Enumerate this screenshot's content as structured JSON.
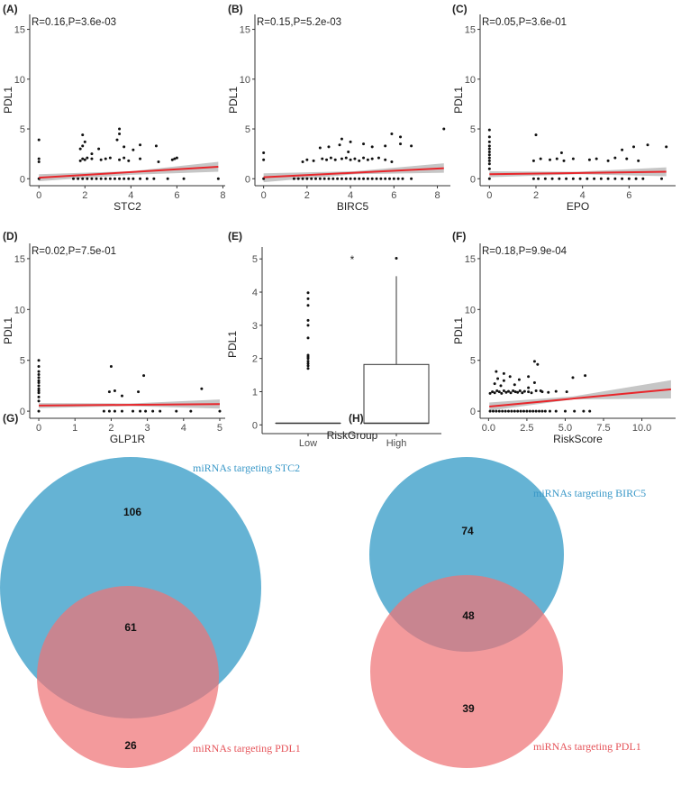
{
  "panel_labels": [
    "(A)",
    "(B)",
    "(C)",
    "(D)",
    "(E)",
    "(F)",
    "(G)",
    "(H)"
  ],
  "colors": {
    "points": "#111111",
    "fit_line": "#e8262b",
    "ci_band": "#b3b3b3",
    "venn_blue": "#4aa6cd",
    "venn_red": "#ef7376",
    "venn_blue_text": "#3a98c8",
    "venn_red_text": "#e5545a"
  },
  "chart_data": [
    {
      "panel": "(A)",
      "type": "scatter",
      "xlabel": "STC2",
      "ylabel": "PDL1",
      "annotation": "R=0.16,P=3.6e-03",
      "xlim": [
        -0.4,
        8.1
      ],
      "ylim": [
        -0.7,
        16.5
      ],
      "xticks": [
        0,
        2,
        4,
        6,
        8
      ],
      "yticks": [
        0,
        5,
        10,
        15
      ],
      "fit": {
        "x": [
          0,
          7.8
        ],
        "y": [
          0.1,
          1.2
        ],
        "ci": [
          [
            0,
            -0.25,
            0.45
          ],
          [
            4,
            0.4,
            0.75
          ],
          [
            7.8,
            0.7,
            1.7
          ]
        ]
      },
      "points": [
        [
          0,
          0
        ],
        [
          0,
          1.7
        ],
        [
          0,
          2.0
        ],
        [
          0,
          3.9
        ],
        [
          1.5,
          0
        ],
        [
          1.7,
          0
        ],
        [
          1.9,
          0
        ],
        [
          2.1,
          0
        ],
        [
          2.3,
          0
        ],
        [
          2.5,
          0
        ],
        [
          2.7,
          0
        ],
        [
          2.9,
          0
        ],
        [
          3.1,
          0
        ],
        [
          3.3,
          0
        ],
        [
          3.5,
          0
        ],
        [
          3.7,
          0
        ],
        [
          3.9,
          0
        ],
        [
          4.1,
          0
        ],
        [
          4.4,
          0
        ],
        [
          4.7,
          0
        ],
        [
          5.0,
          0
        ],
        [
          5.6,
          0
        ],
        [
          6.3,
          0
        ],
        [
          7.8,
          0
        ],
        [
          1.8,
          1.8
        ],
        [
          1.9,
          2.0
        ],
        [
          2.0,
          1.9
        ],
        [
          2.1,
          2.1
        ],
        [
          2.3,
          2.0
        ],
        [
          2.7,
          1.9
        ],
        [
          2.9,
          2.0
        ],
        [
          3.1,
          2.1
        ],
        [
          3.5,
          1.9
        ],
        [
          3.7,
          2.1
        ],
        [
          3.9,
          1.8
        ],
        [
          4.4,
          2.0
        ],
        [
          5.2,
          1.7
        ],
        [
          5.8,
          1.9
        ],
        [
          1.8,
          3.0
        ],
        [
          1.9,
          3.3
        ],
        [
          2.0,
          3.7
        ],
        [
          1.9,
          4.4
        ],
        [
          2.3,
          2.5
        ],
        [
          2.6,
          3.0
        ],
        [
          3.4,
          3.9
        ],
        [
          3.5,
          4.5
        ],
        [
          3.5,
          5.0
        ],
        [
          3.7,
          3.2
        ],
        [
          4.1,
          2.9
        ],
        [
          4.4,
          3.4
        ],
        [
          5.1,
          3.3
        ],
        [
          5.9,
          2.0
        ],
        [
          6.0,
          2.1
        ]
      ]
    },
    {
      "panel": "(B)",
      "type": "scatter",
      "xlabel": "BIRC5",
      "ylabel": "PDL1",
      "annotation": "R=0.15,P=5.2e-03",
      "xlim": [
        -0.4,
        8.6
      ],
      "ylim": [
        -0.7,
        16.5
      ],
      "xticks": [
        0,
        2,
        4,
        6,
        8
      ],
      "yticks": [
        0,
        5,
        10,
        15
      ],
      "fit": {
        "x": [
          0,
          8.3
        ],
        "y": [
          0.15,
          1.05
        ],
        "ci": [
          [
            0,
            -0.35,
            0.55
          ],
          [
            4.2,
            0.45,
            0.75
          ],
          [
            8.3,
            0.6,
            1.55
          ]
        ]
      },
      "points": [
        [
          0,
          0
        ],
        [
          0,
          1.9
        ],
        [
          0,
          2.6
        ],
        [
          1.4,
          0
        ],
        [
          1.6,
          0
        ],
        [
          1.8,
          0
        ],
        [
          2.0,
          0
        ],
        [
          2.2,
          0
        ],
        [
          2.4,
          0
        ],
        [
          2.6,
          0
        ],
        [
          2.8,
          0
        ],
        [
          3.0,
          0
        ],
        [
          3.2,
          0
        ],
        [
          3.4,
          0
        ],
        [
          3.6,
          0
        ],
        [
          3.8,
          0
        ],
        [
          4.0,
          0
        ],
        [
          4.2,
          0
        ],
        [
          4.4,
          0
        ],
        [
          4.6,
          0
        ],
        [
          4.8,
          0
        ],
        [
          5.0,
          0
        ],
        [
          5.2,
          0
        ],
        [
          5.4,
          0
        ],
        [
          5.6,
          0
        ],
        [
          5.8,
          0
        ],
        [
          6.0,
          0
        ],
        [
          6.2,
          0
        ],
        [
          6.4,
          0
        ],
        [
          6.8,
          0
        ],
        [
          1.8,
          1.7
        ],
        [
          2.0,
          1.9
        ],
        [
          2.3,
          1.8
        ],
        [
          2.7,
          2.0
        ],
        [
          2.9,
          1.9
        ],
        [
          3.1,
          2.1
        ],
        [
          3.3,
          1.9
        ],
        [
          3.6,
          2.0
        ],
        [
          3.8,
          2.1
        ],
        [
          4.0,
          1.9
        ],
        [
          4.2,
          2.0
        ],
        [
          4.4,
          1.8
        ],
        [
          4.6,
          2.1
        ],
        [
          4.8,
          1.9
        ],
        [
          5.0,
          2.0
        ],
        [
          5.3,
          2.1
        ],
        [
          5.6,
          1.9
        ],
        [
          5.9,
          1.7
        ],
        [
          2.6,
          3.1
        ],
        [
          3.0,
          3.2
        ],
        [
          3.5,
          3.4
        ],
        [
          3.9,
          2.7
        ],
        [
          3.6,
          4.0
        ],
        [
          4.0,
          3.7
        ],
        [
          4.6,
          3.5
        ],
        [
          5.0,
          3.2
        ],
        [
          5.6,
          3.3
        ],
        [
          5.9,
          4.5
        ],
        [
          6.3,
          3.5
        ],
        [
          6.8,
          3.3
        ],
        [
          6.3,
          4.2
        ],
        [
          8.3,
          5.0
        ]
      ]
    },
    {
      "panel": "(C)",
      "type": "scatter",
      "xlabel": "EPO",
      "ylabel": "PDL1",
      "annotation": "R=0.05,P=3.6e-01",
      "xlim": [
        -0.4,
        8.0
      ],
      "ylim": [
        -0.7,
        16.5
      ],
      "xticks": [
        0,
        2,
        4,
        6
      ],
      "yticks": [
        0,
        5,
        10,
        15
      ],
      "fit": {
        "x": [
          0,
          7.6
        ],
        "y": [
          0.45,
          0.7
        ],
        "ci": [
          [
            0,
            0.15,
            0.75
          ],
          [
            3.8,
            0.45,
            0.7
          ],
          [
            7.6,
            0.25,
            1.15
          ]
        ]
      },
      "points": [
        [
          0,
          0
        ],
        [
          0,
          1.0
        ],
        [
          0,
          1.5
        ],
        [
          0,
          1.8
        ],
        [
          0,
          2.1
        ],
        [
          0,
          2.4
        ],
        [
          0,
          2.7
        ],
        [
          0,
          3.0
        ],
        [
          0,
          3.3
        ],
        [
          0,
          3.7
        ],
        [
          0,
          4.2
        ],
        [
          0,
          4.9
        ],
        [
          1.9,
          0
        ],
        [
          2.1,
          0
        ],
        [
          2.4,
          0
        ],
        [
          2.7,
          0
        ],
        [
          3.0,
          0
        ],
        [
          3.3,
          0
        ],
        [
          3.6,
          0
        ],
        [
          3.9,
          0
        ],
        [
          4.2,
          0
        ],
        [
          4.5,
          0
        ],
        [
          4.8,
          0
        ],
        [
          5.1,
          0
        ],
        [
          5.4,
          0
        ],
        [
          5.7,
          0
        ],
        [
          6.0,
          0
        ],
        [
          6.3,
          0
        ],
        [
          6.6,
          0
        ],
        [
          7.4,
          0
        ],
        [
          1.9,
          1.8
        ],
        [
          2.2,
          2.0
        ],
        [
          2.6,
          1.9
        ],
        [
          2.9,
          2.0
        ],
        [
          3.2,
          1.8
        ],
        [
          3.6,
          2.0
        ],
        [
          4.3,
          1.9
        ],
        [
          4.6,
          2.0
        ],
        [
          5.1,
          1.8
        ],
        [
          5.4,
          2.1
        ],
        [
          5.9,
          2.0
        ],
        [
          6.4,
          1.8
        ],
        [
          2.0,
          4.4
        ],
        [
          3.1,
          2.6
        ],
        [
          5.7,
          2.9
        ],
        [
          6.2,
          3.2
        ],
        [
          6.8,
          3.4
        ],
        [
          7.6,
          3.2
        ]
      ]
    },
    {
      "panel": "(D)",
      "type": "scatter",
      "xlabel": "GLP1R",
      "ylabel": "PDL1",
      "annotation": "R=0.02,P=7.5e-01",
      "xlim": [
        -0.25,
        5.15
      ],
      "ylim": [
        -0.7,
        16.5
      ],
      "xticks": [
        0,
        1,
        2,
        3,
        4,
        5
      ],
      "yticks": [
        0,
        5,
        10,
        15
      ],
      "fit": {
        "x": [
          0,
          5.0
        ],
        "y": [
          0.55,
          0.7
        ],
        "ci": [
          [
            0,
            0.3,
            0.8
          ],
          [
            2.5,
            0.5,
            0.75
          ],
          [
            5.0,
            0.25,
            1.15
          ]
        ]
      },
      "points": [
        [
          0,
          0
        ],
        [
          0,
          1.0
        ],
        [
          0,
          1.4
        ],
        [
          0,
          1.8
        ],
        [
          0,
          2.0
        ],
        [
          0,
          2.2
        ],
        [
          0,
          2.5
        ],
        [
          0,
          2.8
        ],
        [
          0,
          3.0
        ],
        [
          0,
          3.3
        ],
        [
          0,
          3.6
        ],
        [
          0,
          3.9
        ],
        [
          0,
          4.4
        ],
        [
          0,
          5.0
        ],
        [
          1.8,
          0
        ],
        [
          1.95,
          0
        ],
        [
          2.1,
          0
        ],
        [
          2.3,
          0
        ],
        [
          2.6,
          0
        ],
        [
          2.8,
          0
        ],
        [
          2.95,
          0
        ],
        [
          3.15,
          0
        ],
        [
          3.35,
          0
        ],
        [
          3.8,
          0
        ],
        [
          4.2,
          0
        ],
        [
          5.0,
          0
        ],
        [
          1.95,
          1.9
        ],
        [
          2.1,
          2.0
        ],
        [
          2.3,
          1.5
        ],
        [
          2.75,
          1.9
        ],
        [
          2.9,
          3.5
        ],
        [
          2.0,
          4.4
        ],
        [
          4.5,
          2.2
        ]
      ]
    },
    {
      "panel": "(E)",
      "type": "box",
      "xlabel": "RiskGroup",
      "ylabel": "PDL1",
      "categories": [
        "Low",
        "High"
      ],
      "ylim": [
        -0.1,
        5.25
      ],
      "yticks": [
        0,
        1,
        2,
        3,
        4,
        5
      ],
      "significance": "*",
      "boxes": [
        {
          "group": "Low",
          "q1": 0.05,
          "median": 0.05,
          "q3": 0.05,
          "whisker_low": 0.05,
          "whisker_high": 0.05,
          "outliers": [
            1.7,
            1.78,
            1.85,
            1.92,
            2.0,
            2.05,
            2.1,
            2.62,
            3.0,
            3.15,
            3.6,
            3.8,
            3.98
          ]
        },
        {
          "group": "High",
          "q1": 0.05,
          "median": 0.05,
          "q3": 1.82,
          "whisker_low": 0.05,
          "whisker_high": 4.48,
          "outliers": [
            5.02
          ]
        }
      ]
    },
    {
      "panel": "(F)",
      "type": "scatter",
      "xlabel": "RiskScore",
      "ylabel": "PDL1",
      "annotation": "R=0.18,P=9.9e-04",
      "xlim": [
        -0.55,
        12.2
      ],
      "ylim": [
        -0.7,
        16.5
      ],
      "xticks": [
        0.0,
        2.5,
        5.0,
        7.5,
        10.0
      ],
      "yticks": [
        0,
        5,
        10,
        15
      ],
      "fit": {
        "x": [
          0.05,
          11.9
        ],
        "y": [
          0.45,
          2.15
        ],
        "ci": [
          [
            0.05,
            0.05,
            0.85
          ],
          [
            5.5,
            1.15,
            1.45
          ],
          [
            11.9,
            1.25,
            3.05
          ]
        ]
      },
      "points": [
        [
          0.1,
          0
        ],
        [
          0.3,
          0
        ],
        [
          0.5,
          0
        ],
        [
          0.7,
          0
        ],
        [
          0.9,
          0
        ],
        [
          1.1,
          0
        ],
        [
          1.3,
          0
        ],
        [
          1.5,
          0
        ],
        [
          1.7,
          0
        ],
        [
          1.9,
          0
        ],
        [
          2.1,
          0
        ],
        [
          2.3,
          0
        ],
        [
          2.5,
          0
        ],
        [
          2.7,
          0
        ],
        [
          2.9,
          0
        ],
        [
          3.1,
          0
        ],
        [
          3.3,
          0
        ],
        [
          3.5,
          0
        ],
        [
          3.7,
          0
        ],
        [
          4.0,
          0
        ],
        [
          4.4,
          0
        ],
        [
          5.0,
          0
        ],
        [
          5.6,
          0
        ],
        [
          6.2,
          0
        ],
        [
          6.6,
          0
        ],
        [
          0.1,
          1.75
        ],
        [
          0.25,
          1.9
        ],
        [
          0.4,
          1.8
        ],
        [
          0.55,
          2.0
        ],
        [
          0.7,
          1.9
        ],
        [
          0.85,
          1.75
        ],
        [
          1.0,
          2.0
        ],
        [
          1.15,
          1.85
        ],
        [
          1.3,
          1.95
        ],
        [
          1.45,
          1.8
        ],
        [
          1.6,
          2.0
        ],
        [
          1.75,
          1.9
        ],
        [
          1.9,
          1.85
        ],
        [
          2.05,
          2.0
        ],
        [
          2.2,
          1.8
        ],
        [
          2.35,
          1.95
        ],
        [
          2.6,
          1.9
        ],
        [
          2.8,
          1.8
        ],
        [
          3.1,
          2.0
        ],
        [
          3.5,
          1.9
        ],
        [
          3.9,
          1.85
        ],
        [
          4.4,
          1.95
        ],
        [
          5.1,
          1.9
        ],
        [
          0.4,
          2.7
        ],
        [
          0.6,
          3.2
        ],
        [
          0.8,
          2.5
        ],
        [
          1.0,
          3.0
        ],
        [
          1.4,
          3.4
        ],
        [
          1.7,
          2.6
        ],
        [
          2.0,
          3.1
        ],
        [
          2.6,
          2.3
        ],
        [
          2.6,
          3.4
        ],
        [
          3.0,
          2.8
        ],
        [
          3.2,
          4.6
        ],
        [
          3.0,
          4.9
        ],
        [
          1.0,
          3.7
        ],
        [
          5.5,
          3.3
        ],
        [
          6.3,
          3.5
        ],
        [
          0.5,
          3.9
        ],
        [
          3.4,
          2.0
        ]
      ]
    }
  ],
  "venn": [
    {
      "panel": "(G)",
      "set_a_label": "miRNAs targeting STC2",
      "set_b_label": "miRNAs targeting PDL1",
      "only_a": "106",
      "both": "61",
      "only_b": "26"
    },
    {
      "panel": "(H)",
      "set_a_label": "miRNAs targeting BIRC5",
      "set_b_label": "miRNAs targeting PDL1",
      "only_a": "74",
      "both": "48",
      "only_b": "39"
    }
  ]
}
